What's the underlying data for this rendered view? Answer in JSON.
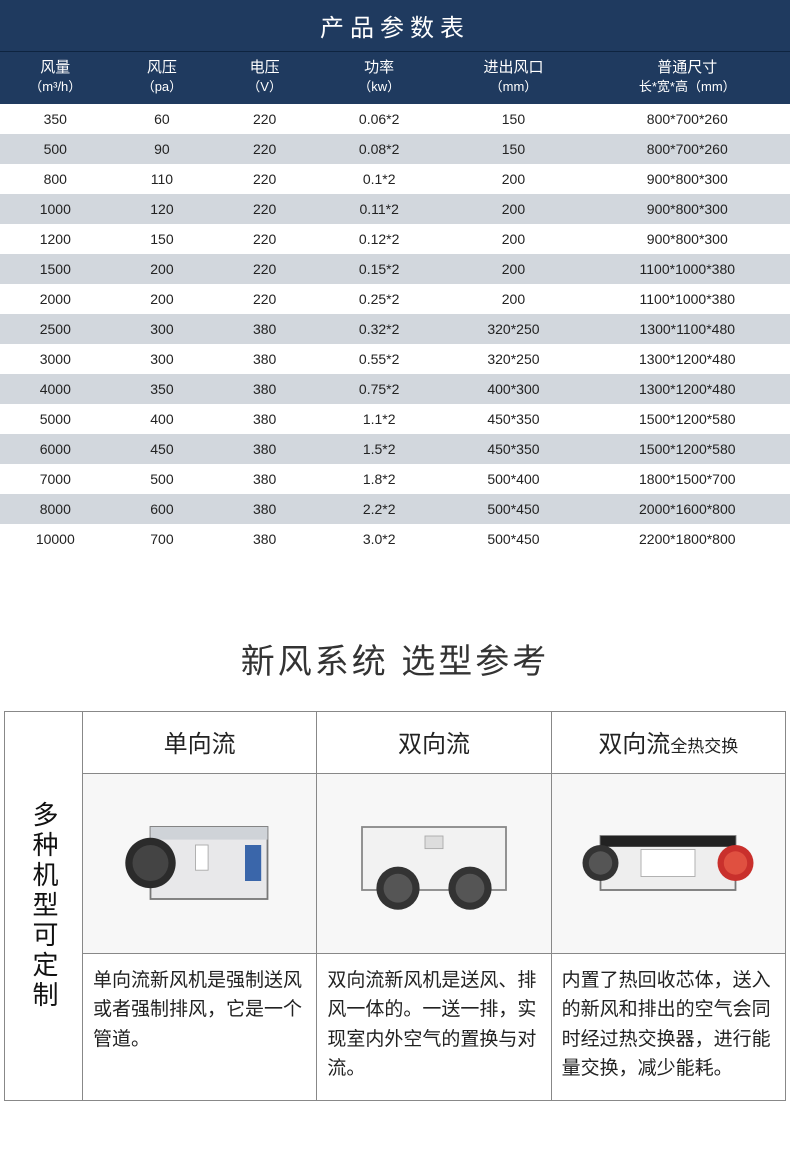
{
  "paramsTable": {
    "title": "产品参数表",
    "columns": [
      {
        "l1": "风量",
        "l2": "（m³/h）"
      },
      {
        "l1": "风压",
        "l2": "（pa）"
      },
      {
        "l1": "电压",
        "l2": "（V）"
      },
      {
        "l1": "功率",
        "l2": "（kw）"
      },
      {
        "l1": "进出风口",
        "l2": "（mm）"
      },
      {
        "l1": "普通尺寸",
        "l2": "长*宽*高（mm）"
      }
    ],
    "widths": [
      "14%",
      "13%",
      "13%",
      "16%",
      "18%",
      "26%"
    ],
    "rows": [
      [
        "350",
        "60",
        "220",
        "0.06*2",
        "150",
        "800*700*260"
      ],
      [
        "500",
        "90",
        "220",
        "0.08*2",
        "150",
        "800*700*260"
      ],
      [
        "800",
        "110",
        "220",
        "0.1*2",
        "200",
        "900*800*300"
      ],
      [
        "1000",
        "120",
        "220",
        "0.11*2",
        "200",
        "900*800*300"
      ],
      [
        "1200",
        "150",
        "220",
        "0.12*2",
        "200",
        "900*800*300"
      ],
      [
        "1500",
        "200",
        "220",
        "0.15*2",
        "200",
        "1100*1000*380"
      ],
      [
        "2000",
        "200",
        "220",
        "0.25*2",
        "200",
        "1100*1000*380"
      ],
      [
        "2500",
        "300",
        "380",
        "0.32*2",
        "320*250",
        "1300*1100*480"
      ],
      [
        "3000",
        "300",
        "380",
        "0.55*2",
        "320*250",
        "1300*1200*480"
      ],
      [
        "4000",
        "350",
        "380",
        "0.75*2",
        "400*300",
        "1300*1200*480"
      ],
      [
        "5000",
        "400",
        "380",
        "1.1*2",
        "450*350",
        "1500*1200*580"
      ],
      [
        "6000",
        "450",
        "380",
        "1.5*2",
        "450*350",
        "1500*1200*580"
      ],
      [
        "7000",
        "500",
        "380",
        "1.8*2",
        "500*400",
        "1800*1500*700"
      ],
      [
        "8000",
        "600",
        "380",
        "2.2*2",
        "500*450",
        "2000*1600*800"
      ],
      [
        "10000",
        "700",
        "380",
        "3.0*2",
        "500*450",
        "2200*1800*800"
      ]
    ],
    "header_bg": "#1f3a5f",
    "header_color": "#ffffff",
    "row_even_bg": "#d2d7dd",
    "row_odd_bg": "#ffffff",
    "font_size_header": 15,
    "font_size_cell": 14
  },
  "selection": {
    "title": "新风系统 选型参考",
    "sideLabel": "多种机型可定制",
    "types": [
      {
        "name": "单向流",
        "desc": "单向流新风机是强制送风或者强制排风，它是一个管道。",
        "icon": "single"
      },
      {
        "name": "双向流",
        "desc": "双向流新风机是送风、排风一体的。一送一排，实现室内外空气的置换与对流。",
        "icon": "dual"
      },
      {
        "name": "双向流",
        "nameSmall": "全热交换",
        "desc": "内置了热回收芯体，送入的新风和排出的空气会同时经过热交换器，进行能量交换，减少能耗。",
        "icon": "hrv"
      }
    ],
    "title_fontsize": 34,
    "head_fontsize": 24,
    "desc_fontsize": 19,
    "border_color": "#888888"
  }
}
